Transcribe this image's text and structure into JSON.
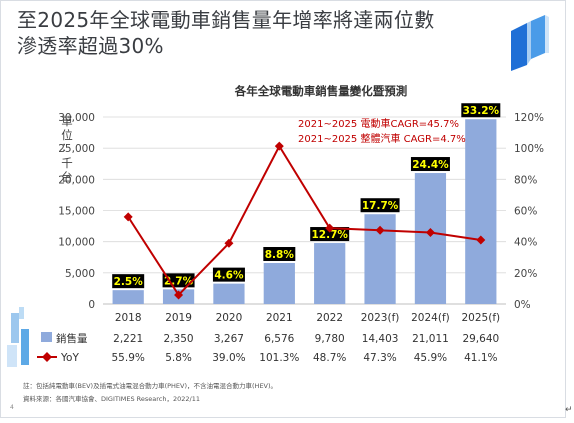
{
  "headline": {
    "line1": "至2025年全球電動車銷售量年增率將達兩位數",
    "line2": "滲透率超過30%"
  },
  "table": {
    "sales_label": "銷售量",
    "yoy_label": "YoY",
    "sales_row": [
      "2,221",
      "2,350",
      "3,267",
      "6,576",
      "9,780",
      "14,403",
      "21,011",
      "29,640"
    ],
    "yoy_row": [
      "55.9%",
      "5.8%",
      "39.0%",
      "101.3%",
      "48.7%",
      "47.3%",
      "45.9%",
      "41.1%"
    ]
  },
  "footnote": {
    "note": "註：包括純電動車(BEV)及插電式油電混合動力車(PHEV)，不含油電混合動力車(HEV)。",
    "source": "資料來源：各國汽車協會、DIGITIMES Research，2022/11"
  },
  "page_number": "4",
  "return_mark": "↵",
  "colors": {
    "bar": "#8faadc",
    "line": "#c00000",
    "label_bg": "#000000",
    "label_text": "#ffff00",
    "annotation": "#c00000",
    "accent": "#1f6fd6"
  },
  "chart_data": {
    "type": "bar",
    "title": "各年全球電動車銷售量變化暨預測",
    "categories": [
      "2018",
      "2019",
      "2020",
      "2021",
      "2022",
      "2023(f)",
      "2024(f)",
      "2025(f)"
    ],
    "ylabel": "單位：千台",
    "ylim": [
      0,
      30000
    ],
    "yticks": [
      "0",
      "5,000",
      "10,000",
      "15,000",
      "20,000",
      "25,000",
      "30,000"
    ],
    "y2lim": [
      0,
      120
    ],
    "y2ticks": [
      "0%",
      "20%",
      "40%",
      "60%",
      "80%",
      "100%",
      "120%"
    ],
    "grid": true,
    "legend": "bottom-left",
    "series": [
      {
        "name": "銷售量",
        "type": "bar",
        "axis": "left",
        "values": [
          2221,
          2350,
          3267,
          6576,
          9780,
          14403,
          21011,
          29640
        ],
        "labels": [
          "2.5%",
          "2.7%",
          "4.6%",
          "8.8%",
          "12.7%",
          "17.7%",
          "24.4%",
          "33.2%"
        ]
      },
      {
        "name": "YoY",
        "type": "line",
        "axis": "right",
        "values": [
          55.9,
          5.8,
          39.0,
          101.3,
          48.7,
          47.3,
          45.9,
          41.1
        ]
      }
    ],
    "annotations": [
      "2021~2025 電動車CAGR=45.7%",
      "2021~2025 整體汽車 CAGR=4.7%"
    ]
  }
}
